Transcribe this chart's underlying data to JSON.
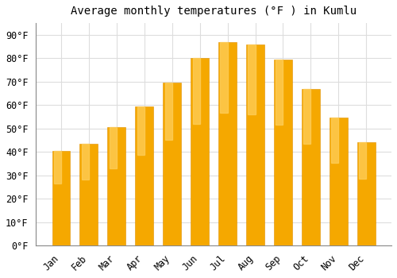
{
  "title": "Average monthly temperatures (°F ) in Kumlu",
  "months": [
    "Jan",
    "Feb",
    "Mar",
    "Apr",
    "May",
    "Jun",
    "Jul",
    "Aug",
    "Sep",
    "Oct",
    "Nov",
    "Dec"
  ],
  "values": [
    40.5,
    43.5,
    50.5,
    59.5,
    69.5,
    80.0,
    87.0,
    86.0,
    79.5,
    67.0,
    54.5,
    44.0
  ],
  "bar_color_bottom": "#F5A800",
  "bar_color_top": "#FFD060",
  "bar_edge_color": "#E09000",
  "background_color": "#FFFFFF",
  "grid_color": "#DDDDDD",
  "ylim": [
    0,
    95
  ],
  "yticks": [
    0,
    10,
    20,
    30,
    40,
    50,
    60,
    70,
    80,
    90
  ],
  "title_fontsize": 10,
  "tick_fontsize": 8.5,
  "bar_width": 0.65
}
